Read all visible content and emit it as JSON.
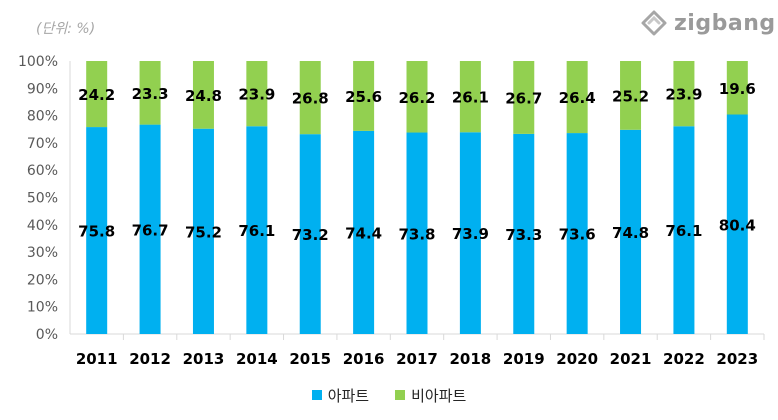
{
  "unit_note": "(단위: %)",
  "logo_text": "zigbang",
  "colors": {
    "apartment": "#00b0f0",
    "non_apartment": "#92d050",
    "axis": "#d9d9d9",
    "text": "#000000"
  },
  "chart_data": {
    "type": "bar",
    "stacked": true,
    "categories": [
      "2011",
      "2012",
      "2013",
      "2014",
      "2015",
      "2016",
      "2017",
      "2018",
      "2019",
      "2020",
      "2021",
      "2022",
      "2023"
    ],
    "series": [
      {
        "name": "아파트",
        "values": [
          75.8,
          76.7,
          75.2,
          76.1,
          73.2,
          74.4,
          73.8,
          73.9,
          73.3,
          73.6,
          74.8,
          76.1,
          80.4
        ]
      },
      {
        "name": "비아파트",
        "values": [
          24.2,
          23.3,
          24.8,
          23.9,
          26.8,
          25.6,
          26.2,
          26.1,
          26.7,
          26.4,
          25.2,
          23.9,
          19.6
        ]
      }
    ],
    "y_ticks": [
      "0%",
      "10%",
      "20%",
      "30%",
      "40%",
      "50%",
      "60%",
      "70%",
      "80%",
      "90%",
      "100%"
    ],
    "ylim": [
      0,
      100
    ],
    "grid": false,
    "legend_position": "bottom"
  }
}
